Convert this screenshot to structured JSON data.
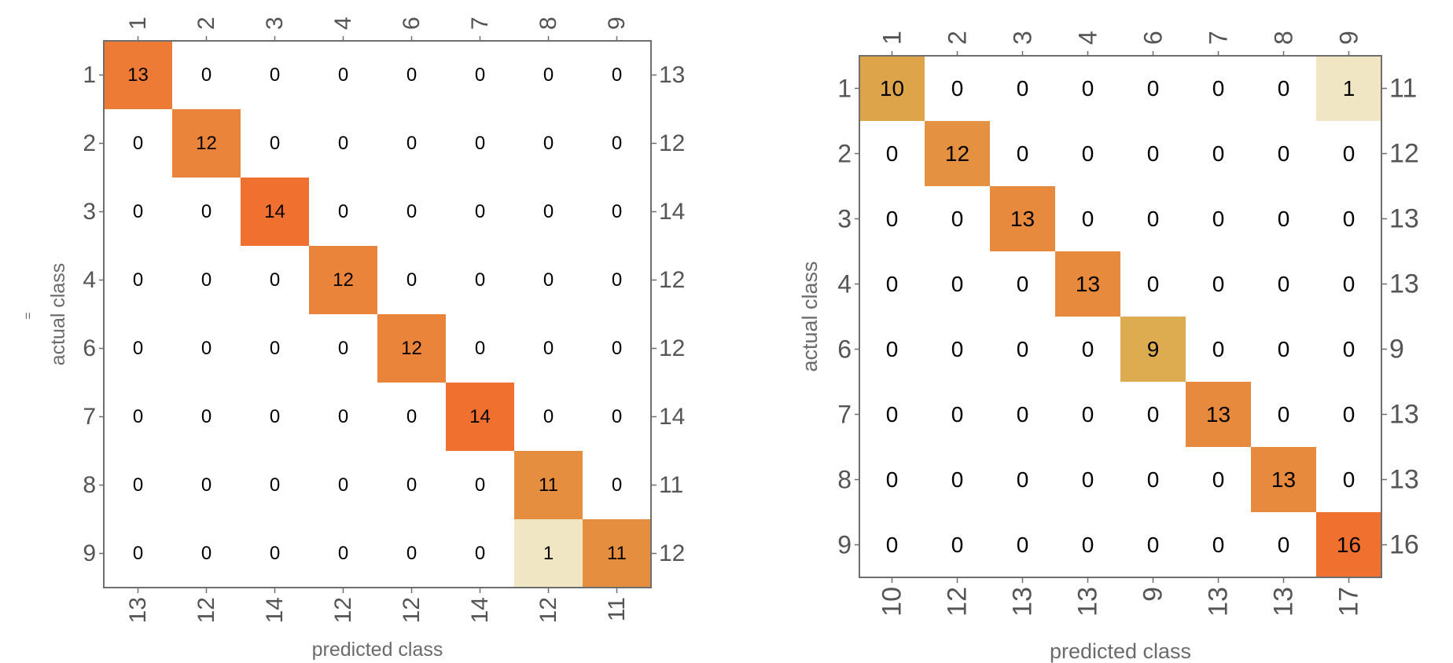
{
  "chart_data": [
    {
      "type": "heatmap",
      "xlabel": "predicted class",
      "ylabel": "actual class",
      "classes": [
        "1",
        "2",
        "3",
        "4",
        "6",
        "7",
        "8",
        "9"
      ],
      "matrix": [
        [
          13,
          0,
          0,
          0,
          0,
          0,
          0,
          0
        ],
        [
          0,
          12,
          0,
          0,
          0,
          0,
          0,
          0
        ],
        [
          0,
          0,
          14,
          0,
          0,
          0,
          0,
          0
        ],
        [
          0,
          0,
          0,
          12,
          0,
          0,
          0,
          0
        ],
        [
          0,
          0,
          0,
          0,
          12,
          0,
          0,
          0
        ],
        [
          0,
          0,
          0,
          0,
          0,
          14,
          0,
          0
        ],
        [
          0,
          0,
          0,
          0,
          0,
          0,
          11,
          0
        ],
        [
          0,
          0,
          0,
          0,
          0,
          0,
          1,
          11
        ]
      ],
      "row_totals": [
        "13",
        "12",
        "14",
        "12",
        "12",
        "14",
        "11",
        "12"
      ],
      "column_totals": [
        "13",
        "12",
        "14",
        "12",
        "12",
        "14",
        "12",
        "11"
      ],
      "side_mark": "="
    },
    {
      "type": "heatmap",
      "xlabel": "predicted class",
      "ylabel": "actual class",
      "classes": [
        "1",
        "2",
        "3",
        "4",
        "6",
        "7",
        "8",
        "9"
      ],
      "matrix": [
        [
          10,
          0,
          0,
          0,
          0,
          0,
          0,
          1
        ],
        [
          0,
          12,
          0,
          0,
          0,
          0,
          0,
          0
        ],
        [
          0,
          0,
          13,
          0,
          0,
          0,
          0,
          0
        ],
        [
          0,
          0,
          0,
          13,
          0,
          0,
          0,
          0
        ],
        [
          0,
          0,
          0,
          0,
          9,
          0,
          0,
          0
        ],
        [
          0,
          0,
          0,
          0,
          0,
          13,
          0,
          0
        ],
        [
          0,
          0,
          0,
          0,
          0,
          0,
          13,
          0
        ],
        [
          0,
          0,
          0,
          0,
          0,
          0,
          0,
          16
        ]
      ],
      "row_totals": [
        "11",
        "12",
        "13",
        "13",
        "9",
        "13",
        "13",
        "16"
      ],
      "column_totals": [
        "10",
        "12",
        "13",
        "13",
        "9",
        "13",
        "13",
        "17"
      ]
    }
  ],
  "colors": {
    "low": "#f1e6c4",
    "mid": "#dcaa4d",
    "high": "#f07030",
    "frame": "#6e6e6e",
    "tick_text": "#555555"
  }
}
